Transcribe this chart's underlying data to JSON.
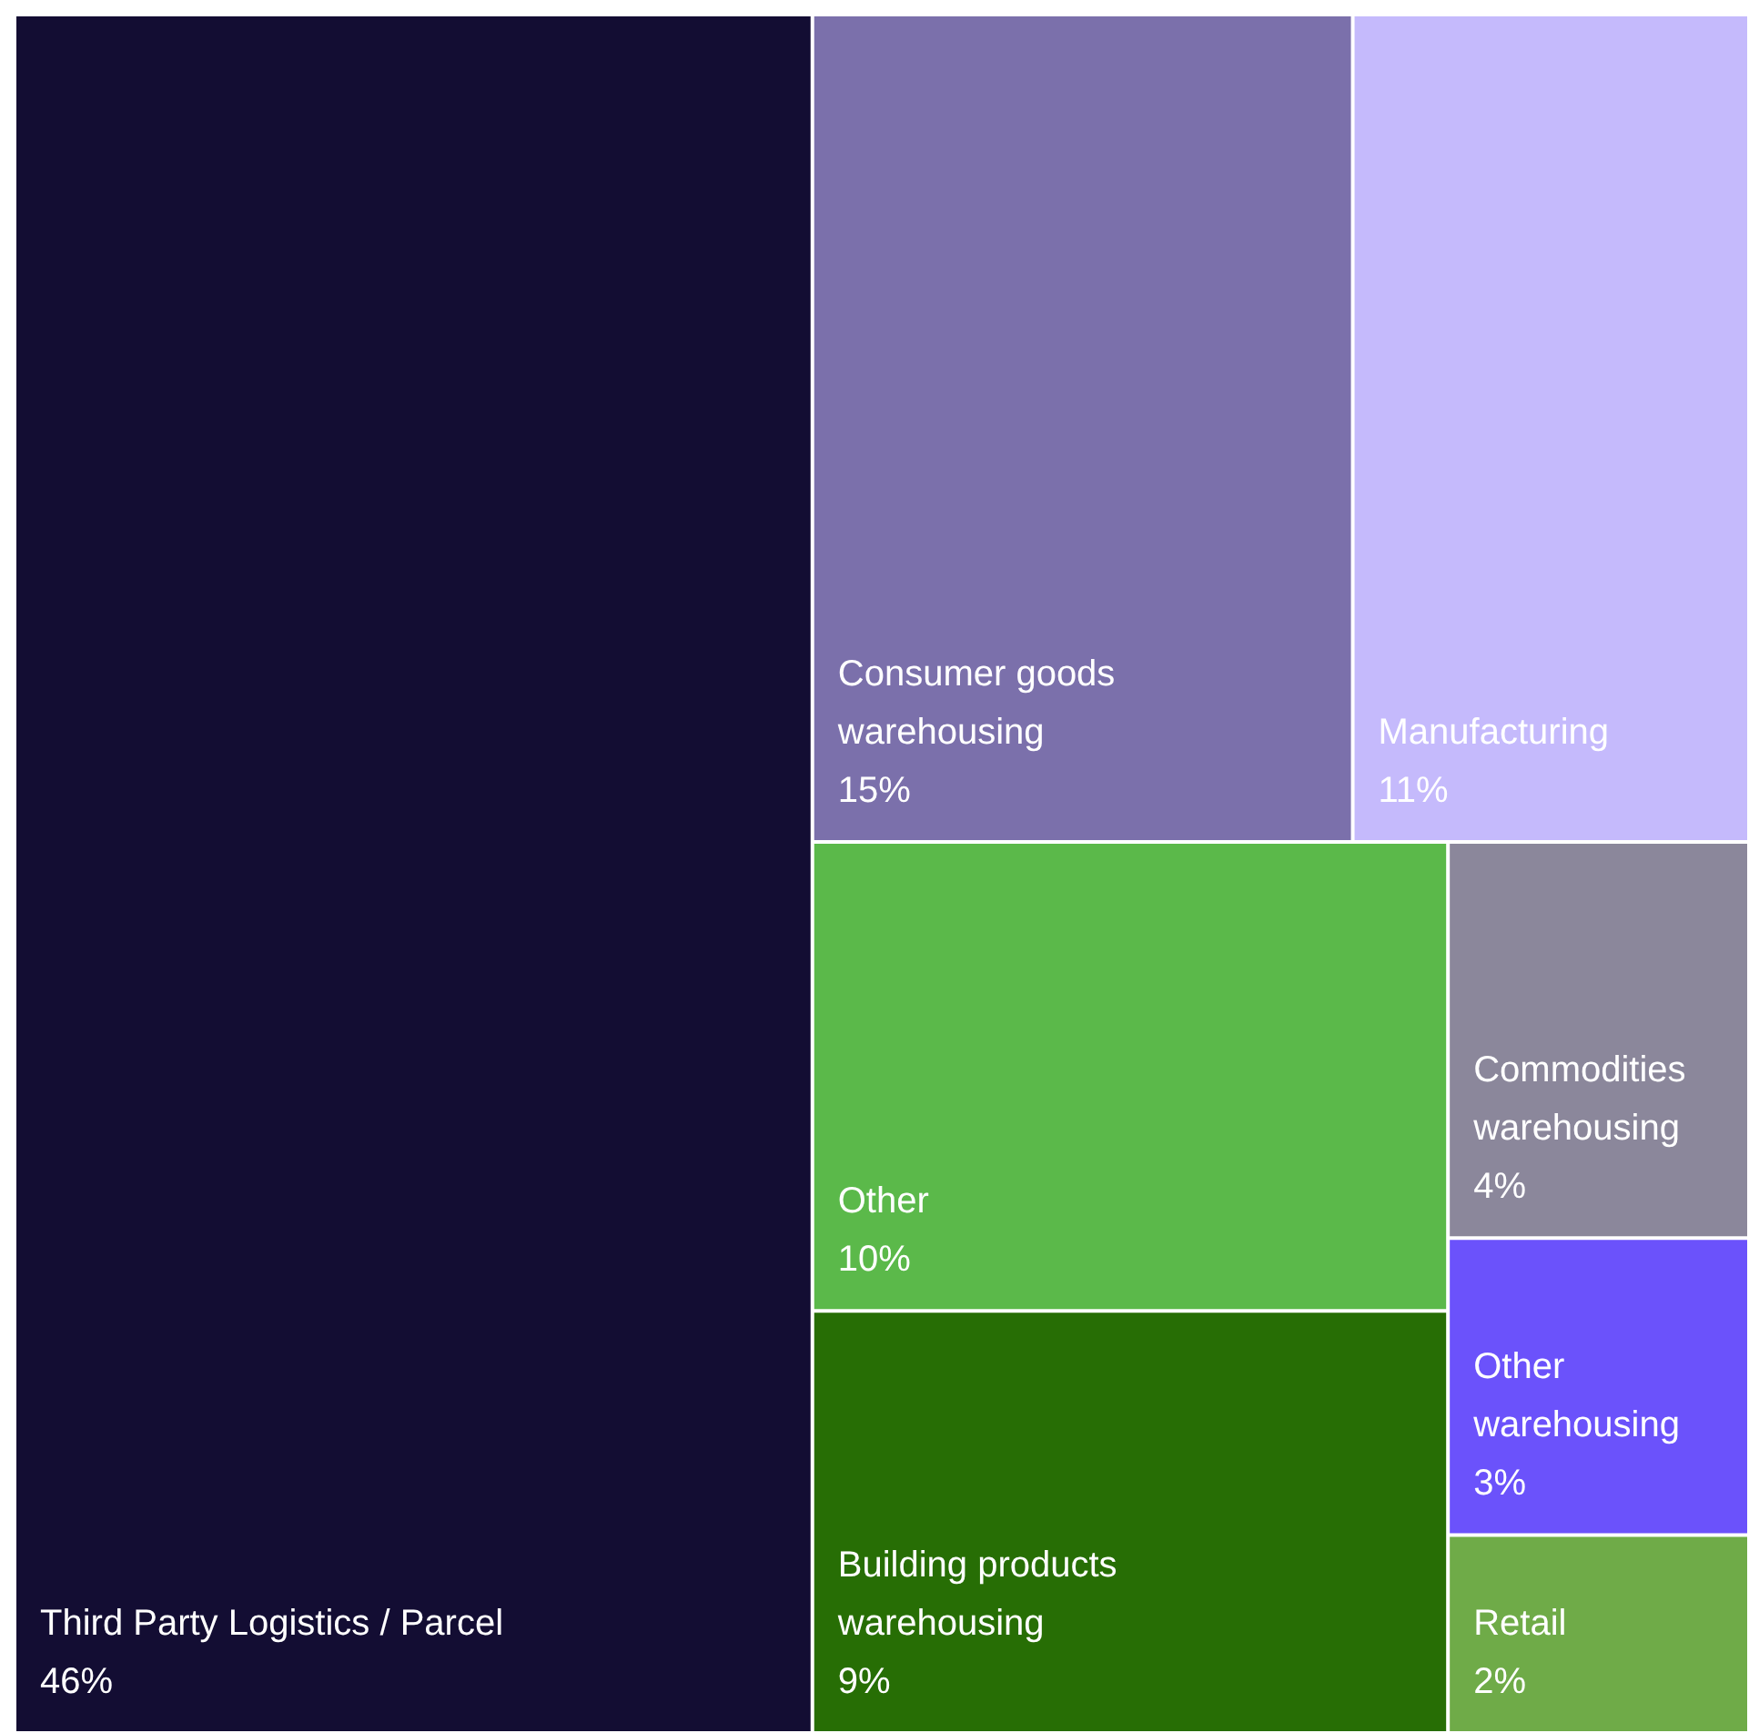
{
  "chart_data": {
    "type": "other",
    "categories": [
      "Third Party Logistics / Parcel",
      "Consumer goods warehousing",
      "Manufacturing",
      "Other",
      "Building products warehousing",
      "Commodities warehousing",
      "Other warehousing",
      "Retail"
    ],
    "values": [
      46,
      15,
      11,
      10,
      9,
      4,
      3,
      2
    ],
    "value_labels": [
      "46%",
      "15%",
      "11%",
      "10%",
      "9%",
      "4%",
      "3%",
      "2%"
    ],
    "colors": [
      "#130d33",
      "#7b70ab",
      "#c5bafc",
      "#5bb94a",
      "#276e05",
      "#8b879b",
      "#6b52fb",
      "#6fab48"
    ]
  }
}
